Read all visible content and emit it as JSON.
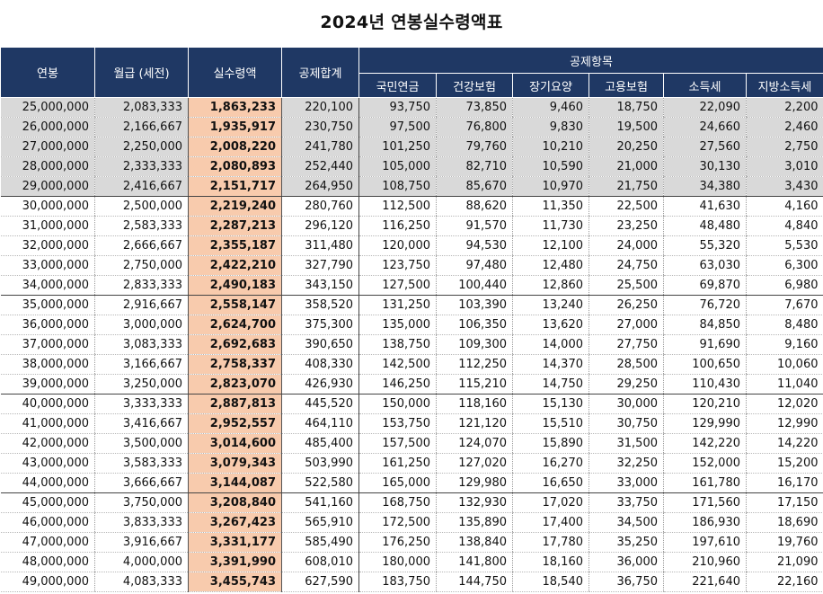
{
  "title": "2024년 연봉실수령액표",
  "headers": {
    "salary": "연봉",
    "monthly": "월급 (세전)",
    "net": "실수령액",
    "total": "공제합계",
    "deduction_group": "공제항목",
    "deductions": [
      "국민연금",
      "건강보험",
      "장기요양",
      "고용보험",
      "소득세",
      "지방소득세"
    ]
  },
  "rows": [
    [
      "25,000,000",
      "2,083,333",
      "1,863,233",
      "220,100",
      "93,750",
      "73,850",
      "9,460",
      "18,750",
      "22,090",
      "2,200"
    ],
    [
      "26,000,000",
      "2,166,667",
      "1,935,917",
      "230,750",
      "97,500",
      "76,800",
      "9,830",
      "19,500",
      "24,660",
      "2,460"
    ],
    [
      "27,000,000",
      "2,250,000",
      "2,008,220",
      "241,780",
      "101,250",
      "79,760",
      "10,210",
      "20,250",
      "27,560",
      "2,750"
    ],
    [
      "28,000,000",
      "2,333,333",
      "2,080,893",
      "252,440",
      "105,000",
      "82,710",
      "10,590",
      "21,000",
      "30,130",
      "3,010"
    ],
    [
      "29,000,000",
      "2,416,667",
      "2,151,717",
      "264,950",
      "108,750",
      "85,670",
      "10,970",
      "21,750",
      "34,380",
      "3,430"
    ],
    [
      "30,000,000",
      "2,500,000",
      "2,219,240",
      "280,760",
      "112,500",
      "88,620",
      "11,350",
      "22,500",
      "41,630",
      "4,160"
    ],
    [
      "31,000,000",
      "2,583,333",
      "2,287,213",
      "296,120",
      "116,250",
      "91,570",
      "11,730",
      "23,250",
      "48,480",
      "4,840"
    ],
    [
      "32,000,000",
      "2,666,667",
      "2,355,187",
      "311,480",
      "120,000",
      "94,530",
      "12,100",
      "24,000",
      "55,320",
      "5,530"
    ],
    [
      "33,000,000",
      "2,750,000",
      "2,422,210",
      "327,790",
      "123,750",
      "97,480",
      "12,480",
      "24,750",
      "63,030",
      "6,300"
    ],
    [
      "34,000,000",
      "2,833,333",
      "2,490,183",
      "343,150",
      "127,500",
      "100,440",
      "12,860",
      "25,500",
      "69,870",
      "6,980"
    ],
    [
      "35,000,000",
      "2,916,667",
      "2,558,147",
      "358,520",
      "131,250",
      "103,390",
      "13,240",
      "26,250",
      "76,720",
      "7,670"
    ],
    [
      "36,000,000",
      "3,000,000",
      "2,624,700",
      "375,300",
      "135,000",
      "106,350",
      "13,620",
      "27,000",
      "84,850",
      "8,480"
    ],
    [
      "37,000,000",
      "3,083,333",
      "2,692,683",
      "390,650",
      "138,750",
      "109,300",
      "14,000",
      "27,750",
      "91,690",
      "9,160"
    ],
    [
      "38,000,000",
      "3,166,667",
      "2,758,337",
      "408,330",
      "142,500",
      "112,250",
      "14,370",
      "28,500",
      "100,650",
      "10,060"
    ],
    [
      "39,000,000",
      "3,250,000",
      "2,823,070",
      "426,930",
      "146,250",
      "115,210",
      "14,750",
      "29,250",
      "110,430",
      "11,040"
    ],
    [
      "40,000,000",
      "3,333,333",
      "2,887,813",
      "445,520",
      "150,000",
      "118,160",
      "15,130",
      "30,000",
      "120,210",
      "12,020"
    ],
    [
      "41,000,000",
      "3,416,667",
      "2,952,557",
      "464,110",
      "153,750",
      "121,120",
      "15,510",
      "30,750",
      "129,990",
      "12,990"
    ],
    [
      "42,000,000",
      "3,500,000",
      "3,014,600",
      "485,400",
      "157,500",
      "124,070",
      "15,890",
      "31,500",
      "142,220",
      "14,220"
    ],
    [
      "43,000,000",
      "3,583,333",
      "3,079,343",
      "503,990",
      "161,250",
      "127,020",
      "16,270",
      "32,250",
      "152,000",
      "15,200"
    ],
    [
      "44,000,000",
      "3,666,667",
      "3,144,087",
      "522,580",
      "165,000",
      "129,980",
      "16,650",
      "33,000",
      "161,780",
      "16,170"
    ],
    [
      "45,000,000",
      "3,750,000",
      "3,208,840",
      "541,160",
      "168,750",
      "132,930",
      "17,020",
      "33,750",
      "171,560",
      "17,150"
    ],
    [
      "46,000,000",
      "3,833,333",
      "3,267,423",
      "565,910",
      "172,500",
      "135,890",
      "17,400",
      "34,500",
      "186,930",
      "18,690"
    ],
    [
      "47,000,000",
      "3,916,667",
      "3,331,177",
      "585,490",
      "176,250",
      "138,840",
      "17,780",
      "35,250",
      "197,610",
      "19,760"
    ],
    [
      "48,000,000",
      "4,000,000",
      "3,391,990",
      "608,010",
      "180,000",
      "141,800",
      "18,160",
      "36,000",
      "210,960",
      "21,090"
    ],
    [
      "49,000,000",
      "4,083,333",
      "3,455,743",
      "627,590",
      "183,750",
      "144,750",
      "18,540",
      "36,750",
      "221,640",
      "22,160"
    ]
  ],
  "colors": {
    "header_bg": "#1f3864",
    "row_shade": "#d9d9d9",
    "net_highlight": "#f8cbad"
  }
}
